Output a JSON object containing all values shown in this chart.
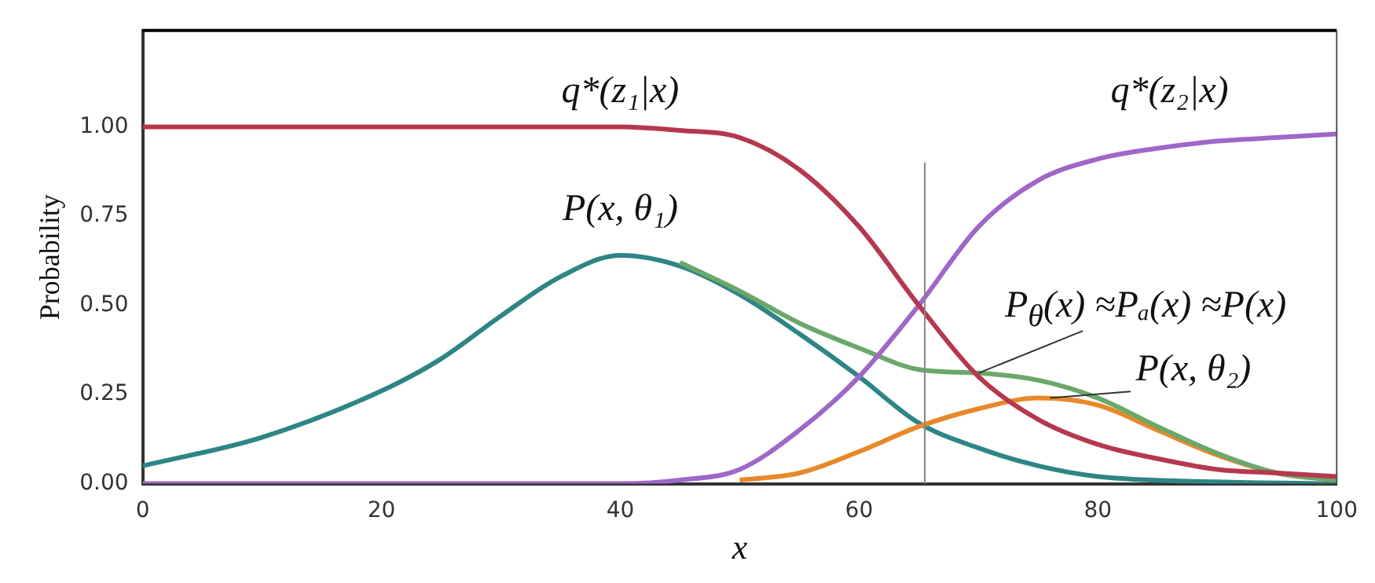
{
  "chart_data": {
    "type": "line",
    "xlabel": "x",
    "ylabel": "Probability",
    "xlim": [
      0,
      100
    ],
    "xticks": [
      0,
      20,
      40,
      60,
      80,
      100
    ],
    "ylim": [
      0,
      1.27
    ],
    "yticks": [
      {
        "value": 0,
        "label": "0.00"
      },
      {
        "value": 0.25,
        "label": "0.25"
      },
      {
        "value": 0.5,
        "label": "0.50"
      },
      {
        "value": 0.75,
        "label": "0.75"
      },
      {
        "value": 1,
        "label": "1.00"
      }
    ],
    "grid": false,
    "legend": false,
    "marker": "none",
    "line_style": "solid",
    "series": [
      {
        "color": "#b5384f",
        "x": [
          0,
          10,
          20,
          30,
          40,
          45,
          50,
          55,
          60,
          65,
          70,
          75,
          80,
          85,
          90,
          95,
          100
        ],
        "values": [
          1,
          1,
          1,
          1,
          1,
          0.99,
          0.97,
          0.88,
          0.72,
          0.5,
          0.3,
          0.18,
          0.11,
          0.07,
          0.04,
          0.03,
          0.02
        ]
      },
      {
        "color": "#a066c8",
        "x": [
          0,
          10,
          20,
          30,
          40,
          45,
          50,
          55,
          60,
          65,
          70,
          75,
          80,
          85,
          90,
          95,
          100
        ],
        "values": [
          0,
          0,
          0,
          0,
          0,
          0.01,
          0.04,
          0.15,
          0.3,
          0.5,
          0.72,
          0.85,
          0.91,
          0.94,
          0.96,
          0.97,
          0.98
        ]
      },
      {
        "color": "#6aa86a",
        "x": [
          45,
          50,
          55,
          60,
          65,
          70,
          75,
          80,
          85,
          90,
          95,
          100
        ],
        "values": [
          0.62,
          0.54,
          0.45,
          0.38,
          0.32,
          0.31,
          0.29,
          0.24,
          0.16,
          0.085,
          0.03,
          0.01
        ]
      },
      {
        "color": "#e8882a",
        "x": [
          50,
          55,
          60,
          65,
          70,
          75,
          80,
          85,
          90,
          95,
          100
        ],
        "values": [
          0.01,
          0.03,
          0.09,
          0.16,
          0.21,
          0.24,
          0.22,
          0.15,
          0.08,
          0.03,
          0.01
        ]
      },
      {
        "color": "#2e8585",
        "x": [
          0,
          10,
          20,
          25,
          30,
          35,
          40,
          45,
          50,
          55,
          60,
          65,
          70,
          75,
          80,
          90,
          100
        ],
        "values": [
          0.05,
          0.13,
          0.26,
          0.35,
          0.47,
          0.58,
          0.64,
          0.61,
          0.53,
          0.42,
          0.3,
          0.17,
          0.1,
          0.05,
          0.02,
          0.005,
          0
        ]
      }
    ],
    "ref_lines": [
      {
        "axis": "x",
        "value": 65.5,
        "color": "#888888"
      }
    ],
    "annotations": [
      "q*(z₁|x)",
      "q*(z₂|x)",
      "P(x, θ₁)",
      {
        "text": "P$_{θ}$(x) ≈Pₐ(x) ≈P(x)",
        "x": 70,
        "y": 0.31
      },
      {
        "text": "P(x, θ₂)",
        "x": 76,
        "y": 0.24
      }
    ]
  }
}
